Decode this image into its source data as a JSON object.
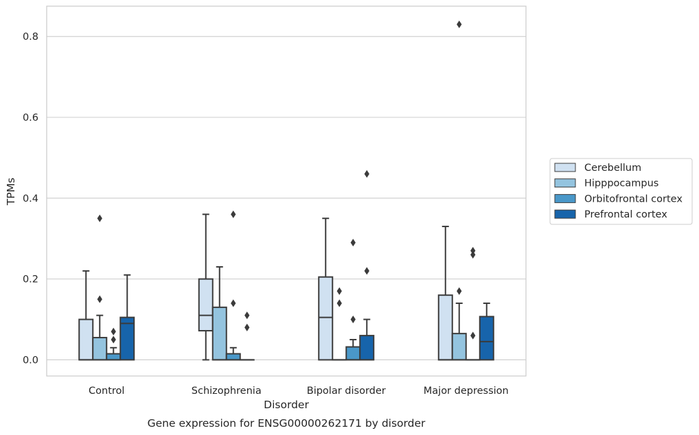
{
  "chart_data": {
    "type": "boxplot",
    "xlabel": "Disorder",
    "ylabel": "TPMs",
    "caption": "Gene expression for ENSG00000262171 by disorder",
    "ylim": [
      -0.04,
      0.875
    ],
    "yticks": [
      0.0,
      0.2,
      0.4,
      0.6,
      0.8
    ],
    "ytick_labels": [
      "0.0",
      "0.2",
      "0.4",
      "0.6",
      "0.8"
    ],
    "grid": "horizontal",
    "legend_position": "outside-right",
    "categories": [
      "Control",
      "Schizophrenia",
      "Bipolar disorder",
      "Major depression"
    ],
    "series": [
      {
        "name": "Cerebellum",
        "color": "#d0e1f1",
        "boxes": [
          {
            "whislo": 0.0,
            "q1": 0.0,
            "med": 0.0,
            "q3": 0.1,
            "whishi": 0.22,
            "fliers": []
          },
          {
            "whislo": 0.0,
            "q1": 0.072,
            "med": 0.11,
            "q3": 0.2,
            "whishi": 0.36,
            "fliers": []
          },
          {
            "whislo": 0.0,
            "q1": 0.0,
            "med": 0.105,
            "q3": 0.205,
            "whishi": 0.35,
            "fliers": []
          },
          {
            "whislo": 0.0,
            "q1": 0.0,
            "med": 0.0,
            "q3": 0.16,
            "whishi": 0.33,
            "fliers": []
          }
        ]
      },
      {
        "name": "Hipppocampus",
        "color": "#94c4df",
        "boxes": [
          {
            "whislo": 0.0,
            "q1": 0.0,
            "med": 0.0,
            "q3": 0.055,
            "whishi": 0.11,
            "fliers": [
              0.15,
              0.35
            ]
          },
          {
            "whislo": 0.0,
            "q1": 0.0,
            "med": 0.0,
            "q3": 0.13,
            "whishi": 0.23,
            "fliers": []
          },
          {
            "whislo": 0.0,
            "q1": 0.0,
            "med": 0.0,
            "q3": 0.0,
            "whishi": 0.0,
            "fliers": [
              0.14,
              0.17
            ]
          },
          {
            "whislo": 0.0,
            "q1": 0.0,
            "med": 0.0,
            "q3": 0.065,
            "whishi": 0.14,
            "fliers": [
              0.17,
              0.83
            ]
          }
        ]
      },
      {
        "name": "Orbitofrontal cortex",
        "color": "#4a98c9",
        "boxes": [
          {
            "whislo": 0.0,
            "q1": 0.0,
            "med": 0.0,
            "q3": 0.015,
            "whishi": 0.03,
            "fliers": [
              0.05,
              0.07
            ]
          },
          {
            "whislo": 0.0,
            "q1": 0.0,
            "med": 0.0,
            "q3": 0.015,
            "whishi": 0.03,
            "fliers": [
              0.14,
              0.36
            ]
          },
          {
            "whislo": 0.0,
            "q1": 0.0,
            "med": 0.0,
            "q3": 0.032,
            "whishi": 0.05,
            "fliers": [
              0.1,
              0.29
            ]
          },
          {
            "whislo": 0.0,
            "q1": 0.0,
            "med": 0.0,
            "q3": 0.0,
            "whishi": 0.0,
            "fliers": [
              0.06,
              0.26,
              0.27
            ]
          }
        ]
      },
      {
        "name": "Prefrontal cortex",
        "color": "#1764ab",
        "boxes": [
          {
            "whislo": 0.0,
            "q1": 0.0,
            "med": 0.09,
            "q3": 0.105,
            "whishi": 0.21,
            "fliers": []
          },
          {
            "whislo": 0.0,
            "q1": 0.0,
            "med": 0.0,
            "q3": 0.0,
            "whishi": 0.0,
            "fliers": [
              0.08,
              0.11
            ]
          },
          {
            "whislo": 0.0,
            "q1": 0.0,
            "med": 0.0,
            "q3": 0.06,
            "whishi": 0.1,
            "fliers": [
              0.22,
              0.46
            ]
          },
          {
            "whislo": 0.0,
            "q1": 0.0,
            "med": 0.045,
            "q3": 0.107,
            "whishi": 0.14,
            "fliers": []
          }
        ]
      }
    ]
  }
}
